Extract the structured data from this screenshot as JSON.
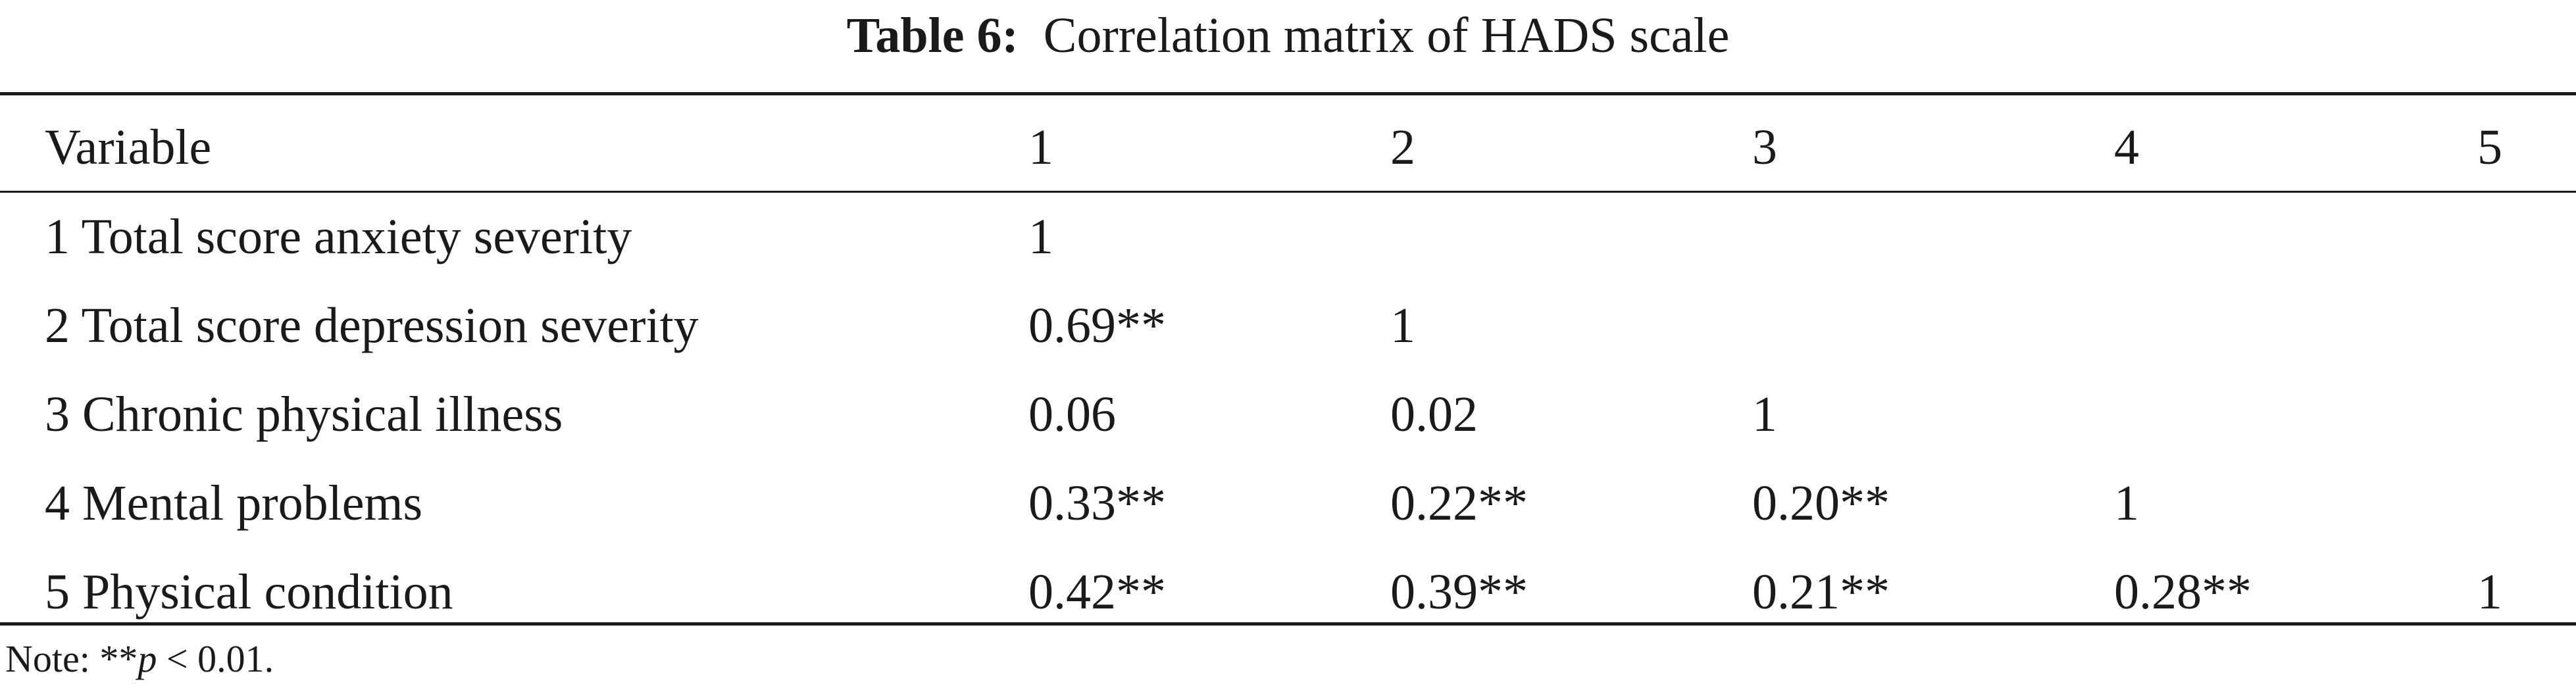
{
  "caption": {
    "label": "Table 6:",
    "title": "Correlation matrix of HADS scale"
  },
  "table": {
    "headers": [
      "Variable",
      "1",
      "2",
      "3",
      "4",
      "5"
    ],
    "rows": [
      {
        "variable": "1 Total score anxiety severity",
        "values": [
          "1",
          "",
          "",
          "",
          ""
        ]
      },
      {
        "variable": "2 Total score depression severity",
        "values": [
          "0.69**",
          "1",
          "",
          "",
          ""
        ]
      },
      {
        "variable": "3 Chronic physical illness",
        "values": [
          "0.06",
          "0.02",
          "1",
          "",
          ""
        ]
      },
      {
        "variable": "4 Mental problems",
        "values": [
          "0.33**",
          "0.22**",
          "0.20**",
          "1",
          ""
        ]
      },
      {
        "variable": "5 Physical condition",
        "values": [
          "0.42**",
          "0.39**",
          "0.21**",
          "0.28**",
          "1"
        ]
      }
    ]
  },
  "note": {
    "prefix": "Note: **",
    "p": "p",
    "suffix": " < 0.01."
  }
}
